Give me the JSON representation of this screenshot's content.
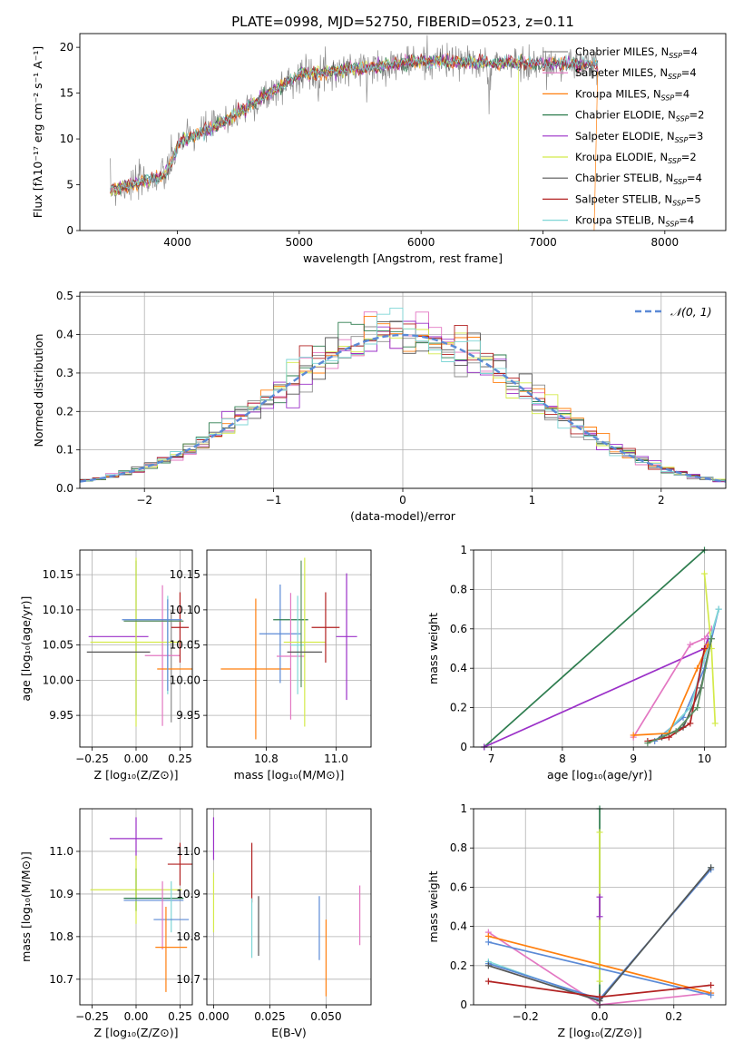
{
  "title": "PLATE=0998, MJD=52750, FIBERID=0523, z=0.11",
  "colors": {
    "chabrier_miles": "#8c8c8c",
    "salpeter_miles": "#e377c2",
    "kroupa_miles": "#ff7f0e",
    "chabrier_elodie": "#2e7d4f",
    "salpeter_elodie": "#9b30c8",
    "kroupa_elodie": "#d4ea4a",
    "chabrier_stelib": "#555555",
    "salpeter_stelib": "#b22222",
    "kroupa_stelib": "#7fd6d6",
    "extra_blue": "#5b8ad6",
    "extra_green": "#5c8f63",
    "extra_lime": "#9acd32",
    "gauss": "#5b8ad6"
  },
  "chart_data": [
    {
      "type": "line",
      "id": "spectrum",
      "xlabel": "wavelength [Angstrom, rest frame]",
      "ylabel": "Flux [fλ10⁻¹⁷ erg cm⁻² s⁻¹ A⁻¹]",
      "xlim": [
        3200,
        8500
      ],
      "ylim": [
        0,
        21.5
      ],
      "xticks": [
        4000,
        5000,
        6000,
        7000,
        8000
      ],
      "yticks": [
        0,
        5,
        10,
        15,
        20
      ],
      "legend": [
        {
          "key": "chabrier_miles",
          "label": "Chabrier MILES, N",
          "sub": "SSP",
          "tail": "=4"
        },
        {
          "key": "salpeter_miles",
          "label": "Salpeter MILES, N",
          "sub": "SSP",
          "tail": "=4"
        },
        {
          "key": "kroupa_miles",
          "label": "Kroupa MILES, N",
          "sub": "SSP",
          "tail": "=4"
        },
        {
          "key": "chabrier_elodie",
          "label": "Chabrier ELODIE, N",
          "sub": "SSP",
          "tail": "=2"
        },
        {
          "key": "salpeter_elodie",
          "label": "Salpeter ELODIE, N",
          "sub": "SSP",
          "tail": "=3"
        },
        {
          "key": "kroupa_elodie",
          "label": "Kroupa ELODIE, N",
          "sub": "SSP",
          "tail": "=2"
        },
        {
          "key": "chabrier_stelib",
          "label": "Chabrier STELIB, N",
          "sub": "SSP",
          "tail": "=4"
        },
        {
          "key": "salpeter_stelib",
          "label": "Salpeter STELIB, N",
          "sub": "SSP",
          "tail": "=5"
        },
        {
          "key": "kroupa_stelib",
          "label": "Kroupa STELIB, N",
          "sub": "SSP",
          "tail": "=4"
        }
      ],
      "legend_loc": "right",
      "grid": false
    },
    {
      "type": "histogram",
      "id": "residuals",
      "xlabel": "(data-model)/error",
      "ylabel": "Normed distribution",
      "xlim": [
        -2.5,
        2.5
      ],
      "ylim": [
        0,
        0.51
      ],
      "xticks": [
        -2,
        -1,
        0,
        1,
        2
      ],
      "yticks": [
        0.0,
        0.1,
        0.2,
        0.3,
        0.4,
        0.5
      ],
      "legend": "𝒩(0, 1)",
      "legend_loc": "upper right",
      "grid": true
    },
    {
      "type": "scatter",
      "id": "age_vs_Z",
      "xlabel": "Z [log₁₀(Z/Z⊙)]",
      "ylabel": "age  [log₁₀(age/yr)]",
      "xlim": [
        -0.32,
        0.32
      ],
      "ylim": [
        9.905,
        10.185
      ],
      "xticks": [
        -0.25,
        0.0,
        0.25
      ],
      "xticklabels": [
        "−0.25",
        "0.00",
        "0.25"
      ],
      "yticks": [
        9.95,
        10.0,
        10.05,
        10.1,
        10.15
      ],
      "yticklabels": [
        "9.95",
        "10.00",
        "10.05",
        "10.10",
        "10.15"
      ],
      "points": [
        {
          "c": "chabrier_miles",
          "x": 0.2,
          "xerr": 0.0,
          "y": 10.02,
          "yerr": 0.08
        },
        {
          "c": "salpeter_miles",
          "x": 0.15,
          "xerr": 0.1,
          "y": 10.035,
          "yerr": 0.1
        },
        {
          "c": "kroupa_miles",
          "x": 0.22,
          "xerr": 0.1,
          "y": 10.016,
          "yerr": 0.0
        },
        {
          "c": "chabrier_elodie",
          "x": 0.0,
          "xerr": 0.0,
          "y": 10.06,
          "yerr": 0.11
        },
        {
          "c": "salpeter_elodie",
          "x": -0.1,
          "xerr": 0.17,
          "y": 10.062,
          "yerr": 0.0
        },
        {
          "c": "kroupa_elodie",
          "x": 0.0,
          "xerr": 0.26,
          "y": 10.054,
          "yerr": 0.12
        },
        {
          "c": "chabrier_stelib",
          "x": -0.1,
          "xerr": 0.18,
          "y": 10.04,
          "yerr": 0.0
        },
        {
          "c": "salpeter_stelib",
          "x": 0.25,
          "xerr": 0.05,
          "y": 10.075,
          "yerr": 0.05
        },
        {
          "c": "kroupa_stelib",
          "x": 0.18,
          "xerr": 0.0,
          "y": 10.05,
          "yerr": 0.07
        },
        {
          "c": "extra_blue",
          "x": 0.09,
          "xerr": 0.17,
          "y": 10.086,
          "yerr": 0.0
        },
        {
          "c": "extra_green",
          "x": 0.1,
          "xerr": 0.17,
          "y": 10.084,
          "yerr": 0.0
        },
        {
          "c": "extra_blue",
          "x": 0.18,
          "xerr": 0.0,
          "y": 10.05,
          "yerr": 0.065
        }
      ],
      "grid": true
    },
    {
      "type": "scatter",
      "id": "age_vs_mass",
      "xlabel": "mass [log₁₀(M/M⊙)]",
      "ylabel": "",
      "xlim": [
        10.63,
        11.1
      ],
      "ylim": [
        9.905,
        10.185
      ],
      "xticks": [
        10.8,
        11.0
      ],
      "xticklabels": [
        "10.8",
        "11.0"
      ],
      "yticks": [
        9.95,
        10.0,
        10.05,
        10.1,
        10.15
      ],
      "yticklabels": [
        "9.95",
        "10.00",
        "10.05",
        "10.10",
        "10.15"
      ],
      "points": [
        {
          "c": "kroupa_miles",
          "x": 10.77,
          "xerr": 0.1,
          "y": 10.016,
          "yerr": 0.1
        },
        {
          "c": "extra_blue",
          "x": 10.84,
          "xerr": 0.06,
          "y": 10.066,
          "yerr": 0.07
        },
        {
          "c": "chabrier_elodie",
          "x": 10.87,
          "xerr": 0.05,
          "y": 10.086,
          "yerr": 0.0
        },
        {
          "c": "salpeter_miles",
          "x": 10.87,
          "xerr": 0.04,
          "y": 10.034,
          "yerr": 0.09
        },
        {
          "c": "kroupa_stelib",
          "x": 10.89,
          "xerr": 0.02,
          "y": 10.05,
          "yerr": 0.07
        },
        {
          "c": "kroupa_elodie",
          "x": 10.91,
          "xerr": 0.06,
          "y": 10.054,
          "yerr": 0.12
        },
        {
          "c": "extra_green",
          "x": 10.9,
          "xerr": 0.0,
          "y": 10.08,
          "yerr": 0.09
        },
        {
          "c": "chabrier_stelib",
          "x": 10.91,
          "xerr": 0.05,
          "y": 10.04,
          "yerr": 0.0
        },
        {
          "c": "salpeter_stelib",
          "x": 10.97,
          "xerr": 0.04,
          "y": 10.075,
          "yerr": 0.05
        },
        {
          "c": "salpeter_elodie",
          "x": 11.03,
          "xerr": 0.03,
          "y": 10.062,
          "yerr": 0.09
        }
      ],
      "grid": true
    },
    {
      "type": "line",
      "id": "weight_vs_age",
      "xlabel": "age  [log₁₀(age/yr)]",
      "ylabel": "mass weight",
      "xlim": [
        6.75,
        10.3
      ],
      "ylim": [
        0,
        1.0
      ],
      "xticks": [
        7,
        8,
        9,
        10
      ],
      "yticks": [
        0.0,
        0.2,
        0.4,
        0.6,
        0.8,
        1.0
      ],
      "series": [
        {
          "c": "chabrier_elodie",
          "x": [
            6.9,
            10.0
          ],
          "y": [
            0.0,
            1.0
          ]
        },
        {
          "c": "salpeter_elodie",
          "x": [
            6.9,
            10.0,
            10.05
          ],
          "y": [
            0.0,
            0.5,
            0.55
          ]
        },
        {
          "c": "salpeter_miles",
          "x": [
            9.0,
            9.8,
            10.0,
            10.1
          ],
          "y": [
            0.05,
            0.52,
            0.55,
            0.6
          ]
        },
        {
          "c": "kroupa_elodie",
          "x": [
            10.0,
            10.1,
            10.15
          ],
          "y": [
            0.88,
            0.5,
            0.12
          ]
        },
        {
          "c": "extra_blue",
          "x": [
            9.3,
            9.7,
            10.0,
            10.2
          ],
          "y": [
            0.03,
            0.15,
            0.4,
            0.7
          ]
        },
        {
          "c": "kroupa_stelib",
          "x": [
            9.4,
            9.8,
            10.0,
            10.2
          ],
          "y": [
            0.05,
            0.2,
            0.45,
            0.7
          ]
        },
        {
          "c": "kroupa_miles",
          "x": [
            9.0,
            9.5,
            9.9,
            10.05
          ],
          "y": [
            0.06,
            0.07,
            0.4,
            0.52
          ]
        },
        {
          "c": "chabrier_stelib",
          "x": [
            9.4,
            9.7,
            9.95,
            10.1
          ],
          "y": [
            0.05,
            0.1,
            0.3,
            0.55
          ]
        },
        {
          "c": "salpeter_stelib",
          "x": [
            9.2,
            9.5,
            9.8,
            10.0
          ],
          "y": [
            0.03,
            0.05,
            0.12,
            0.5
          ]
        },
        {
          "c": "extra_green",
          "x": [
            9.2,
            9.6,
            9.9,
            10.1
          ],
          "y": [
            0.02,
            0.08,
            0.2,
            0.55
          ]
        }
      ],
      "grid": true
    },
    {
      "type": "scatter",
      "id": "mass_vs_Z",
      "xlabel": "Z [log₁₀(Z/Z⊙)]",
      "ylabel": "mass [log₁₀(M/M⊙)]",
      "xlim": [
        -0.32,
        0.32
      ],
      "ylim": [
        10.64,
        11.1
      ],
      "xticks": [
        -0.25,
        0.0,
        0.25
      ],
      "xticklabels": [
        "−0.25",
        "0.00",
        "0.25"
      ],
      "yticks": [
        10.7,
        10.8,
        10.9,
        11.0
      ],
      "yticklabels": [
        "10.7",
        "10.8",
        "10.9",
        "11.0"
      ],
      "points": [
        {
          "c": "salpeter_elodie",
          "x": 0.0,
          "xerr": 0.15,
          "y": 11.03,
          "yerr": 0.05
        },
        {
          "c": "salpeter_stelib",
          "x": 0.25,
          "xerr": 0.07,
          "y": 10.97,
          "yerr": 0.05
        },
        {
          "c": "kroupa_elodie",
          "x": 0.0,
          "xerr": 0.26,
          "y": 10.91,
          "yerr": 0.08
        },
        {
          "c": "extra_lime",
          "x": 0.0,
          "xerr": 0.0,
          "y": 10.91,
          "yerr": 0.05
        },
        {
          "c": "chabrier_elodie",
          "x": 0.1,
          "xerr": 0.17,
          "y": 10.89,
          "yerr": 0.0
        },
        {
          "c": "extra_blue",
          "x": 0.1,
          "xerr": 0.17,
          "y": 10.885,
          "yerr": 0.0
        },
        {
          "c": "kroupa_stelib",
          "x": 0.2,
          "xerr": 0.0,
          "y": 10.87,
          "yerr": 0.06
        },
        {
          "c": "extra_blue",
          "x": 0.2,
          "xerr": 0.1,
          "y": 10.84,
          "yerr": 0.0
        },
        {
          "c": "salpeter_miles",
          "x": 0.15,
          "xerr": 0.0,
          "y": 10.85,
          "yerr": 0.08
        },
        {
          "c": "kroupa_miles",
          "x": 0.2,
          "xerr": 0.09,
          "y": 10.775,
          "yerr": 0.0
        },
        {
          "c": "kroupa_miles",
          "x": 0.17,
          "xerr": 0.0,
          "y": 10.77,
          "yerr": 0.1
        }
      ],
      "grid": true
    },
    {
      "type": "scatter",
      "id": "mass_vs_ebv",
      "xlabel": "E(B-V)",
      "ylabel": "",
      "xlim": [
        -0.003,
        0.07
      ],
      "ylim": [
        10.64,
        11.1
      ],
      "xticks": [
        0.0,
        0.025,
        0.05
      ],
      "xticklabels": [
        "0.000",
        "0.025",
        "0.050"
      ],
      "yticks": [
        10.7,
        10.8,
        10.9,
        11.0
      ],
      "yticklabels": [
        "10.7",
        "10.8",
        "10.9",
        "11.0"
      ],
      "points": [
        {
          "c": "salpeter_elodie",
          "x": 0.0,
          "xerr": 0.0,
          "y": 11.03,
          "yerr": 0.05
        },
        {
          "c": "kroupa_elodie",
          "x": 0.0,
          "xerr": 0.0,
          "y": 10.88,
          "yerr": 0.07
        },
        {
          "c": "salpeter_stelib",
          "x": 0.017,
          "xerr": 0.0,
          "y": 10.95,
          "yerr": 0.07
        },
        {
          "c": "kroupa_stelib",
          "x": 0.017,
          "xerr": 0.0,
          "y": 10.82,
          "yerr": 0.07
        },
        {
          "c": "chabrier_stelib",
          "x": 0.02,
          "xerr": 0.0,
          "y": 10.825,
          "yerr": 0.07
        },
        {
          "c": "extra_blue",
          "x": 0.047,
          "xerr": 0.0,
          "y": 10.82,
          "yerr": 0.075
        },
        {
          "c": "kroupa_miles",
          "x": 0.05,
          "xerr": 0.0,
          "y": 10.75,
          "yerr": 0.09
        },
        {
          "c": "salpeter_miles",
          "x": 0.065,
          "xerr": 0.0,
          "y": 10.85,
          "yerr": 0.07
        }
      ],
      "grid": true
    },
    {
      "type": "line",
      "id": "weight_vs_Z",
      "xlabel": "Z [log₁₀(Z/Z⊙)]",
      "ylabel": "mass weight",
      "xlim": [
        -0.34,
        0.34
      ],
      "ylim": [
        0,
        1.0
      ],
      "xticks": [
        -0.2,
        0.0,
        0.2
      ],
      "xticklabels": [
        "−0.2",
        "0.0",
        "0.2"
      ],
      "yticks": [
        0.0,
        0.2,
        0.4,
        0.6,
        0.8,
        1.0
      ],
      "series": [
        {
          "c": "chabrier_elodie",
          "x": [
            0.0,
            0.0
          ],
          "y": [
            0.0,
            1.0
          ]
        },
        {
          "c": "kroupa_elodie",
          "x": [
            0.0,
            0.0
          ],
          "y": [
            0.12,
            0.88
          ]
        },
        {
          "c": "salpeter_elodie",
          "x": [
            0.0,
            0.0
          ],
          "y": [
            0.45,
            0.55
          ]
        },
        {
          "c": "salpeter_miles",
          "x": [
            -0.3,
            0.0,
            0.3
          ],
          "y": [
            0.37,
            0.0,
            0.06
          ]
        },
        {
          "c": "kroupa_miles",
          "x": [
            -0.3,
            0.3
          ],
          "y": [
            0.35,
            0.06
          ]
        },
        {
          "c": "extra_blue",
          "x": [
            -0.3,
            0.3
          ],
          "y": [
            0.32,
            0.05
          ]
        },
        {
          "c": "kroupa_stelib",
          "x": [
            -0.3,
            0.0,
            0.3
          ],
          "y": [
            0.22,
            0.02,
            0.7
          ]
        },
        {
          "c": "extra_blue",
          "x": [
            -0.3,
            0.0,
            0.3
          ],
          "y": [
            0.21,
            0.03,
            0.69
          ]
        },
        {
          "c": "chabrier_stelib",
          "x": [
            -0.3,
            0.0,
            0.3
          ],
          "y": [
            0.2,
            0.02,
            0.7
          ]
        },
        {
          "c": "salpeter_stelib",
          "x": [
            -0.3,
            0.0,
            0.3
          ],
          "y": [
            0.12,
            0.04,
            0.1
          ]
        }
      ],
      "grid": true
    }
  ]
}
